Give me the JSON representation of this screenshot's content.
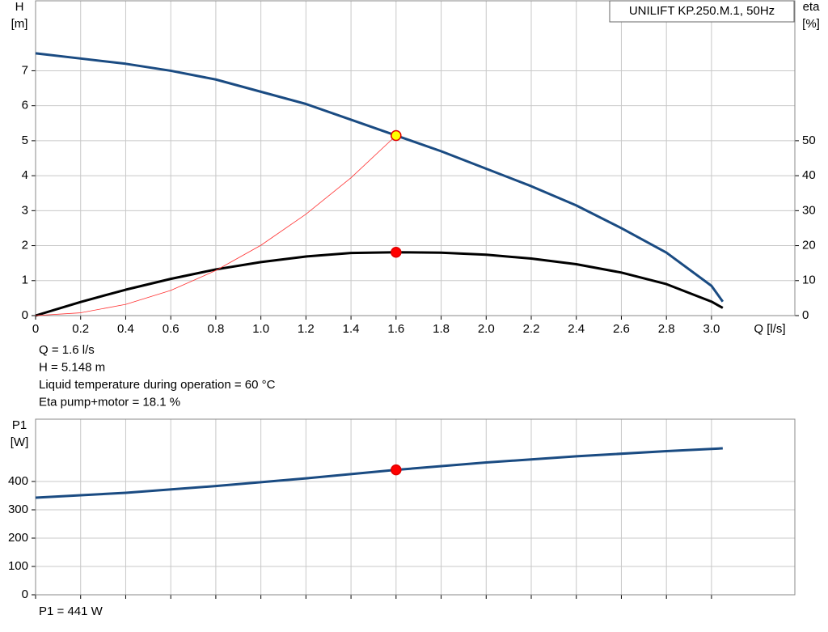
{
  "chart_data": [
    {
      "type": "line",
      "title": "UNILIFT KP.250.M.1, 50Hz",
      "ylabel": [
        "H",
        "[m]"
      ],
      "y2label": [
        "eta",
        "[%]"
      ],
      "xlabel": "Q [l/s]",
      "xlim": [
        0,
        3.37
      ],
      "xticks": [
        {
          "value": 0,
          "label": "0"
        },
        {
          "value": 0.2,
          "label": "0.2"
        },
        {
          "value": 0.4,
          "label": "0.4"
        },
        {
          "value": 0.6,
          "label": "0.6"
        },
        {
          "value": 0.8,
          "label": "0.8"
        },
        {
          "value": 1.0,
          "label": "1.0"
        },
        {
          "value": 1.2,
          "label": "1.2"
        },
        {
          "value": 1.4,
          "label": "1.4"
        },
        {
          "value": 1.6,
          "label": "1.6"
        },
        {
          "value": 1.8,
          "label": "1.8"
        },
        {
          "value": 2.0,
          "label": "2.0"
        },
        {
          "value": 2.2,
          "label": "2.2"
        },
        {
          "value": 2.4,
          "label": "2.4"
        },
        {
          "value": 2.6,
          "label": "2.6"
        },
        {
          "value": 2.8,
          "label": "2.8"
        },
        {
          "value": 3.0,
          "label": "3.0"
        }
      ],
      "ylim": [
        0,
        9
      ],
      "yticks": [
        0,
        1,
        2,
        3,
        4,
        5,
        6,
        7
      ],
      "y2lim": [
        0,
        90
      ],
      "y2ticks": [
        0,
        10,
        20,
        30,
        40,
        50
      ],
      "grid": true,
      "series": [
        {
          "color": "#1a4b82",
          "width": 3,
          "x": [
            0,
            0.2,
            0.4,
            0.6,
            0.8,
            1.0,
            1.2,
            1.4,
            1.6,
            1.8,
            2.0,
            2.2,
            2.4,
            2.6,
            2.8,
            3.0,
            3.05
          ],
          "values": [
            7.5,
            7.35,
            7.2,
            7.0,
            6.75,
            6.4,
            6.05,
            5.6,
            5.15,
            4.7,
            4.2,
            3.7,
            3.15,
            2.5,
            1.8,
            0.85,
            0.4
          ]
        },
        {
          "color": "#000000",
          "width": 3,
          "axis": "y2",
          "x": [
            0,
            0.2,
            0.4,
            0.6,
            0.8,
            1.0,
            1.2,
            1.4,
            1.6,
            1.8,
            2.0,
            2.2,
            2.4,
            2.6,
            2.8,
            3.0,
            3.05
          ],
          "values": [
            0,
            3.9,
            7.4,
            10.5,
            13.2,
            15.3,
            16.9,
            17.9,
            18.1,
            18.0,
            17.4,
            16.3,
            14.7,
            12.3,
            9.0,
            4.0,
            2.2
          ]
        },
        {
          "color": "#ff3030",
          "width": 0.8,
          "x": [
            0,
            0.2,
            0.4,
            0.6,
            0.8,
            1.0,
            1.2,
            1.4,
            1.6
          ],
          "values": [
            0,
            0.08,
            0.32,
            0.72,
            1.29,
            2.01,
            2.9,
            3.94,
            5.148
          ]
        }
      ],
      "points": [
        {
          "x": 1.6,
          "y": 5.148,
          "color": "#ffff00"
        },
        {
          "x": 1.6,
          "y": 18.1,
          "color": "#ff0000",
          "axis": "y2"
        }
      ],
      "annotations": [
        "Q = 1.6 l/s",
        "H = 5.148 m",
        "Liquid temperature during operation = 60 °C",
        "Eta pump+motor = 18.1 %"
      ]
    },
    {
      "type": "line",
      "ylabel": [
        "P1",
        "[W]"
      ],
      "xlim": [
        0,
        3.37
      ],
      "xticks": [
        0,
        0.2,
        0.4,
        0.6,
        0.8,
        1.0,
        1.2,
        1.4,
        1.6,
        1.8,
        2.0,
        2.2,
        2.4,
        2.6,
        2.8,
        3.0
      ],
      "ylim": [
        0,
        620
      ],
      "yticks": [
        0,
        100,
        200,
        300,
        400
      ],
      "grid": true,
      "series": [
        {
          "color": "#1a4b82",
          "width": 3,
          "x": [
            0,
            0.4,
            0.8,
            1.2,
            1.6,
            2.0,
            2.4,
            2.8,
            3.05
          ],
          "values": [
            343,
            360,
            384,
            411,
            441,
            467,
            489,
            507,
            517
          ]
        }
      ],
      "points": [
        {
          "x": 1.6,
          "y": 441,
          "color": "#ff0000"
        }
      ],
      "annotations": [
        "P1 = 441 W"
      ]
    }
  ]
}
